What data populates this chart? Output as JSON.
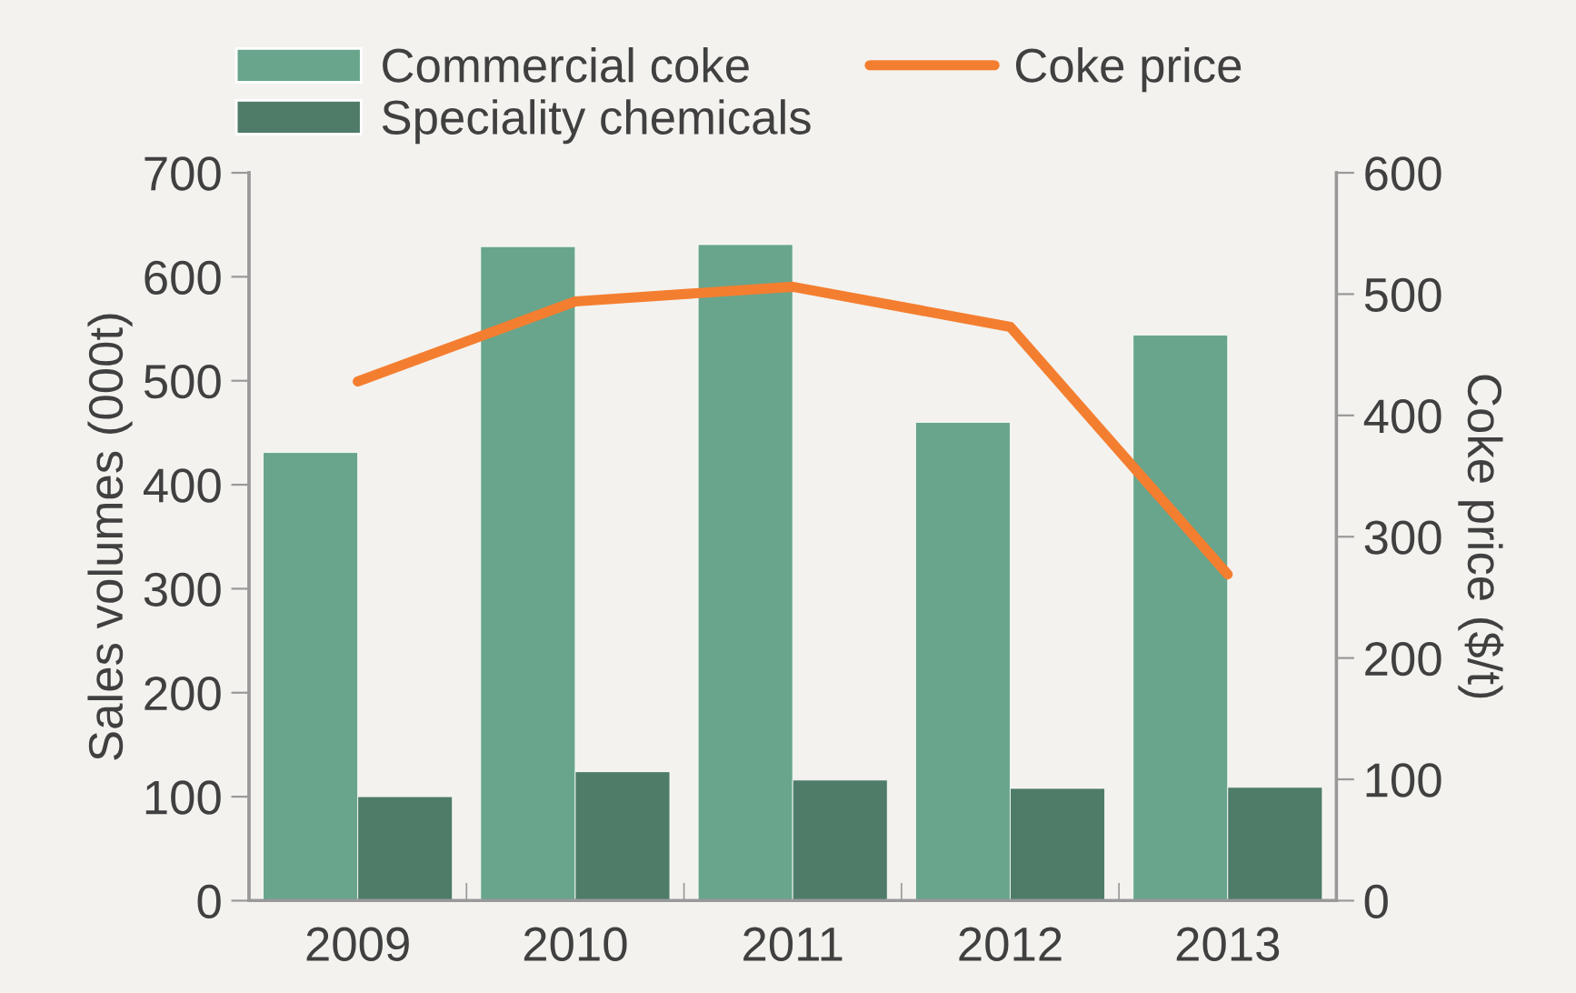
{
  "chart_data": {
    "type": "bar",
    "categories": [
      "2009",
      "2010",
      "2011",
      "2012",
      "2013"
    ],
    "series": [
      {
        "name": "Commercial coke",
        "color": "#68a58c",
        "values": [
          431,
          629,
          631,
          460,
          544
        ]
      },
      {
        "name": "Speciality chemicals",
        "color": "#4e7c69",
        "values": [
          100,
          124,
          116,
          108,
          109
        ]
      },
      {
        "name": "Coke price",
        "type": "line",
        "axis": "y2",
        "color": "#f47e30",
        "values": [
          428,
          494,
          506,
          473,
          269
        ]
      }
    ],
    "ylabel": "Sales volumes (000t)",
    "y2label": "Coke price ($/t)",
    "ylim": [
      0,
      700
    ],
    "yticks": [
      0,
      100,
      200,
      300,
      400,
      500,
      600,
      700
    ],
    "y2lim": [
      0,
      600
    ],
    "y2ticks": [
      0,
      100,
      200,
      300,
      400,
      500,
      600
    ],
    "grid": false,
    "legend": "top"
  }
}
